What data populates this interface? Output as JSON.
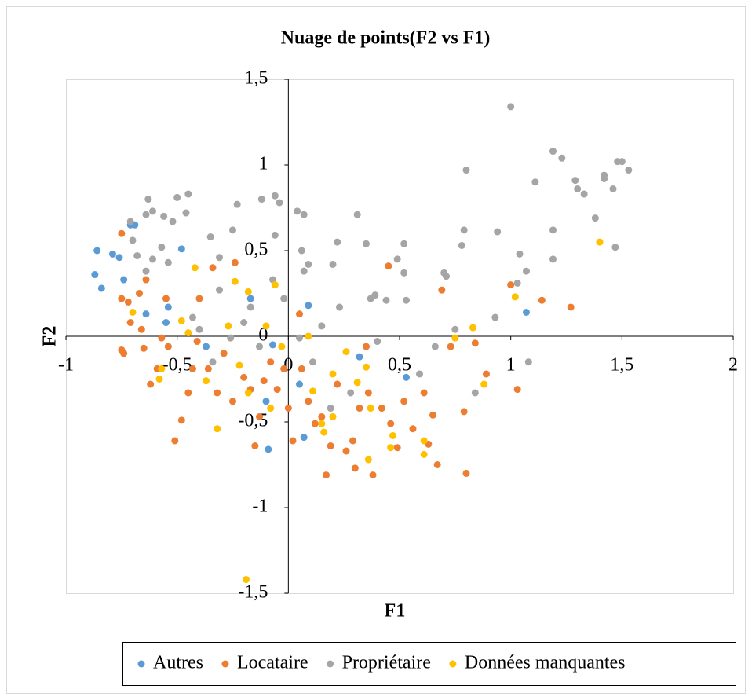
{
  "chart_data": {
    "type": "scatter",
    "title": "Nuage de points(F2 vs F1)",
    "x_label": "F1",
    "y_label": "F2",
    "xlim": [
      -1,
      2
    ],
    "ylim": [
      -1.5,
      1.5
    ],
    "xticks": [
      -1,
      {
        "value": -0.5,
        "label": "-0,5"
      },
      0,
      {
        "value": 0.5,
        "label": "0,5"
      },
      1,
      {
        "value": 1.5,
        "label": "1,5"
      },
      2
    ],
    "yticks": [
      {
        "value": -1.5,
        "label": "-1,5"
      },
      -1,
      {
        "value": -0.5,
        "label": "-0,5"
      },
      0,
      {
        "value": 0.5,
        "label": "0,5"
      },
      1,
      {
        "value": 1.5,
        "label": "1,5"
      }
    ],
    "grid": false,
    "legend": "bottom",
    "series": [
      {
        "name": "Autres",
        "color": "#5b9bd5",
        "x": [
          -0.86,
          -0.87,
          -0.84,
          -0.79,
          -0.76,
          -0.74,
          -0.71,
          -0.69,
          -0.48,
          -0.54,
          -0.64,
          -0.55,
          -0.37,
          -0.17,
          -0.07,
          -0.1,
          -0.09,
          0.05,
          0.09,
          0.32,
          0.53,
          1.07,
          0.07
        ],
        "y": [
          0.5,
          0.36,
          0.28,
          0.48,
          0.46,
          0.33,
          0.65,
          0.65,
          0.51,
          0.17,
          0.13,
          0.08,
          -0.06,
          0.22,
          -0.05,
          -0.38,
          -0.66,
          -0.28,
          0.18,
          -0.12,
          -0.24,
          0.14,
          -0.59
        ]
      },
      {
        "name": "Locataire",
        "color": "#ed7d31",
        "x": [
          -0.75,
          -0.75,
          -0.72,
          -0.71,
          -0.75,
          -0.74,
          -0.67,
          -0.64,
          -0.66,
          -0.65,
          -0.62,
          -0.59,
          -0.57,
          -0.55,
          -0.54,
          -0.51,
          -0.48,
          -0.45,
          -0.43,
          -0.41,
          -0.4,
          -0.34,
          -0.36,
          -0.32,
          -0.29,
          -0.25,
          -0.24,
          -0.2,
          -0.17,
          -0.15,
          -0.13,
          -0.11,
          -0.08,
          -0.05,
          -0.02,
          0.0,
          0.02,
          0.05,
          0.06,
          0.09,
          0.12,
          0.15,
          0.17,
          0.19,
          0.22,
          0.26,
          0.29,
          0.3,
          0.32,
          0.35,
          0.36,
          0.38,
          0.42,
          0.45,
          0.46,
          0.49,
          0.52,
          0.56,
          0.61,
          0.63,
          0.65,
          0.67,
          0.69,
          0.73,
          0.79,
          0.8,
          0.84,
          0.89,
          1.0,
          1.03,
          1.14,
          1.27
        ],
        "y": [
          0.6,
          0.22,
          0.2,
          0.08,
          -0.08,
          -0.1,
          0.25,
          0.33,
          0.04,
          -0.07,
          -0.28,
          -0.19,
          -0.01,
          0.22,
          -0.06,
          -0.61,
          -0.49,
          -0.33,
          -0.19,
          -0.03,
          0.22,
          0.4,
          -0.19,
          -0.33,
          -0.1,
          -0.38,
          0.43,
          -0.24,
          -0.31,
          -0.64,
          -0.47,
          -0.26,
          -0.15,
          -0.31,
          -0.19,
          -0.42,
          -0.61,
          0.13,
          -0.19,
          -0.38,
          -0.51,
          -0.47,
          -0.81,
          -0.64,
          -0.28,
          -0.67,
          -0.61,
          -0.77,
          -0.42,
          -0.06,
          -0.33,
          -0.81,
          -0.42,
          0.41,
          -0.51,
          -0.65,
          -0.38,
          -0.54,
          -0.33,
          -0.63,
          -0.46,
          -0.75,
          0.27,
          -0.06,
          -0.44,
          -0.8,
          -0.04,
          -0.22,
          0.3,
          -0.31,
          0.21,
          0.17
        ]
      },
      {
        "name": "Propriétaire",
        "color": "#a5a5a5",
        "x": [
          -0.63,
          -0.64,
          -0.71,
          -0.7,
          -0.68,
          -0.64,
          -0.61,
          -0.56,
          -0.52,
          -0.5,
          -0.45,
          -0.46,
          -0.54,
          -0.57,
          -0.61,
          -0.43,
          -0.4,
          -0.35,
          -0.31,
          -0.25,
          -0.23,
          -0.31,
          -0.34,
          -0.26,
          -0.2,
          -0.17,
          -0.12,
          -0.06,
          -0.04,
          -0.06,
          -0.07,
          -0.02,
          -0.13,
          0.04,
          0.07,
          0.06,
          0.07,
          0.09,
          0.05,
          0.11,
          0.15,
          0.19,
          0.2,
          0.22,
          0.23,
          0.28,
          0.31,
          0.35,
          0.37,
          0.39,
          0.4,
          0.44,
          0.49,
          0.52,
          0.52,
          0.53,
          0.59,
          0.66,
          0.7,
          0.71,
          0.75,
          0.78,
          0.79,
          0.8,
          0.84,
          0.93,
          0.94,
          1.0,
          1.03,
          1.04,
          1.07,
          1.08,
          1.11,
          1.19,
          1.19,
          1.23,
          1.19,
          1.29,
          1.3,
          1.33,
          1.38,
          1.42,
          1.42,
          1.46,
          1.48,
          1.5,
          1.53,
          1.47
        ],
        "y": [
          0.8,
          0.71,
          0.67,
          0.56,
          0.47,
          0.38,
          0.73,
          0.7,
          0.67,
          0.81,
          0.83,
          0.72,
          0.43,
          0.52,
          0.45,
          0.11,
          0.04,
          0.58,
          0.46,
          0.62,
          0.77,
          0.27,
          -0.15,
          -0.01,
          0.08,
          0.17,
          0.8,
          0.82,
          0.78,
          0.59,
          0.33,
          0.22,
          -0.06,
          0.73,
          0.71,
          0.5,
          0.38,
          0.42,
          -0.01,
          -0.15,
          0.06,
          -0.42,
          0.42,
          0.55,
          0.17,
          -0.33,
          0.71,
          0.54,
          0.22,
          0.24,
          -0.03,
          0.21,
          0.45,
          0.54,
          0.37,
          0.21,
          -0.22,
          -0.06,
          0.37,
          0.35,
          0.04,
          0.53,
          0.62,
          0.97,
          -0.33,
          0.11,
          0.61,
          1.34,
          0.31,
          0.48,
          0.38,
          -0.15,
          0.9,
          0.62,
          1.08,
          1.04,
          0.45,
          0.91,
          0.86,
          0.83,
          0.69,
          0.94,
          0.92,
          0.86,
          1.02,
          1.02,
          0.97,
          0.52
        ]
      },
      {
        "name": "Données manquantes",
        "color": "#ffc000",
        "x": [
          -0.7,
          -0.57,
          -0.58,
          -0.48,
          -0.45,
          -0.42,
          -0.37,
          -0.32,
          -0.27,
          -0.24,
          -0.18,
          -0.22,
          -0.18,
          -0.19,
          -0.1,
          -0.08,
          -0.06,
          -0.03,
          0.09,
          0.11,
          0.15,
          0.16,
          0.2,
          0.2,
          0.26,
          0.31,
          0.35,
          0.36,
          0.37,
          0.46,
          0.47,
          0.61,
          0.61,
          0.75,
          0.83,
          0.88,
          1.02,
          1.4
        ],
        "y": [
          0.14,
          -0.19,
          -0.25,
          0.09,
          0.02,
          0.4,
          -0.26,
          -0.54,
          0.06,
          0.32,
          0.26,
          -0.17,
          -0.33,
          -1.42,
          0.06,
          -0.42,
          0.3,
          -0.06,
          0.0,
          -0.32,
          -0.51,
          -0.56,
          -0.22,
          -0.47,
          -0.09,
          -0.27,
          -0.18,
          -0.72,
          -0.42,
          -0.65,
          -0.58,
          -0.61,
          -0.69,
          -0.01,
          0.05,
          -0.28,
          0.23,
          0.55
        ]
      }
    ]
  }
}
